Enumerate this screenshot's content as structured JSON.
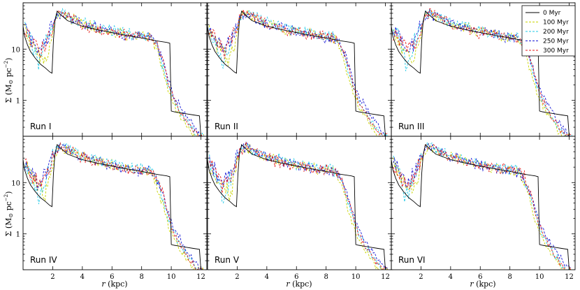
{
  "figure": {
    "ylabel_prefix": "Σ (M",
    "ylabel_sun": "⊙",
    "ylabel_mid": " pc",
    "ylabel_exp": "−2",
    "ylabel_suffix": ")",
    "xlabel_r": "r",
    "xlabel_unit": " (kpc)"
  },
  "chart_data": {
    "type": "line",
    "layout": "2x3 grid of panels sharing axes",
    "xlabel": "r (kpc)",
    "ylabel": "Σ (M⊙ pc^-2)",
    "xlim": [
      0,
      12.4
    ],
    "ylim": [
      0.2,
      80
    ],
    "yscale": "log",
    "xticks": [
      2,
      4,
      6,
      8,
      10,
      12
    ],
    "xtick_labels": [
      "2",
      "4",
      "6",
      "8",
      "10",
      "12"
    ],
    "yticks": [
      1,
      10
    ],
    "ytick_labels": [
      "1",
      "10"
    ],
    "legend": {
      "location": "top-right of upper-right panel",
      "entries": [
        {
          "label": "0 Myr",
          "color": "#000000",
          "style": "solid"
        },
        {
          "label": "100 Myr",
          "color": "#c8d400",
          "style": "dashed"
        },
        {
          "label": "200 Myr",
          "color": "#1ec8e6",
          "style": "dashed"
        },
        {
          "label": "250 Myr",
          "color": "#1a1ad6",
          "style": "dashed"
        },
        {
          "label": "300 Myr",
          "color": "#e61a1a",
          "style": "dashed"
        }
      ]
    },
    "initial_profile": {
      "name": "0 Myr",
      "x": [
        0.0,
        0.1,
        0.3,
        0.5,
        0.8,
        1.0,
        1.2,
        1.5,
        1.8,
        1.95,
        2.05,
        2.15,
        2.3,
        2.5,
        3.0,
        4.0,
        5.0,
        6.0,
        7.0,
        8.0,
        9.0,
        9.7,
        9.9,
        10.0,
        10.2,
        10.5,
        11.0,
        11.5,
        11.9,
        12.0
      ],
      "y": [
        28,
        18,
        12,
        9,
        6.8,
        5.8,
        5.0,
        4.3,
        3.6,
        3.4,
        15,
        35,
        55,
        48,
        36,
        28,
        24,
        21,
        18.5,
        16.5,
        14.5,
        13.5,
        13,
        0.62,
        0.6,
        0.58,
        0.55,
        0.52,
        0.5,
        0.2
      ]
    },
    "series": [
      {
        "name": "100 Myr",
        "color": "#c8d400",
        "x": [
          0.0,
          0.5,
          1.0,
          1.5,
          1.8,
          2.0,
          2.3,
          2.6,
          3.0,
          4.0,
          5.0,
          6.0,
          7.0,
          8.0,
          8.6,
          9.0,
          9.4,
          9.8,
          10.2,
          10.6,
          11.0,
          11.3,
          11.5
        ],
        "y": [
          25,
          14,
          8,
          6,
          12,
          25,
          45,
          50,
          42,
          32,
          26,
          22,
          19,
          17,
          16,
          10,
          4,
          1.5,
          0.8,
          0.5,
          0.35,
          0.25,
          0.2
        ]
      },
      {
        "name": "200 Myr",
        "color": "#1ec8e6",
        "x": [
          0.0,
          0.5,
          1.0,
          1.5,
          1.8,
          2.0,
          2.3,
          2.6,
          3.0,
          4.0,
          5.0,
          6.0,
          7.0,
          8.0,
          8.6,
          9.0,
          9.4,
          9.8,
          10.2,
          10.6,
          11.0,
          11.4,
          11.8
        ],
        "y": [
          30,
          16,
          5,
          12,
          20,
          30,
          48,
          52,
          44,
          33,
          27,
          23,
          20,
          18,
          17,
          12,
          5,
          2,
          1.0,
          0.6,
          0.4,
          0.28,
          0.2
        ]
      },
      {
        "name": "250 Myr",
        "color": "#1a1ad6",
        "x": [
          0.0,
          0.5,
          1.0,
          1.5,
          1.8,
          2.0,
          2.3,
          2.6,
          3.0,
          4.0,
          5.0,
          6.0,
          7.0,
          8.0,
          8.6,
          9.0,
          9.4,
          9.8,
          10.2,
          10.6,
          11.0,
          11.5,
          12.0
        ],
        "y": [
          28,
          18,
          10,
          14,
          22,
          32,
          46,
          50,
          43,
          32,
          26,
          22,
          19,
          17,
          16,
          12,
          6,
          2.5,
          1.2,
          0.8,
          0.5,
          0.32,
          0.2
        ]
      },
      {
        "name": "300 Myr",
        "color": "#e61a1a",
        "x": [
          0.0,
          0.5,
          1.0,
          1.5,
          1.8,
          2.0,
          2.3,
          2.6,
          3.0,
          4.0,
          5.0,
          6.0,
          7.0,
          8.0,
          8.6,
          9.0,
          9.4,
          9.8,
          10.2,
          10.6,
          11.0,
          11.4,
          11.8
        ],
        "y": [
          26,
          15,
          9,
          12,
          20,
          30,
          44,
          52,
          45,
          30,
          24,
          21,
          19,
          18,
          17,
          13,
          6,
          2.2,
          1.0,
          0.6,
          0.4,
          0.27,
          0.2
        ]
      }
    ],
    "panels": [
      {
        "label": "Run I"
      },
      {
        "label": "Run II"
      },
      {
        "label": "Run III"
      },
      {
        "label": "Run IV"
      },
      {
        "label": "Run V"
      },
      {
        "label": "Run VI"
      }
    ]
  }
}
